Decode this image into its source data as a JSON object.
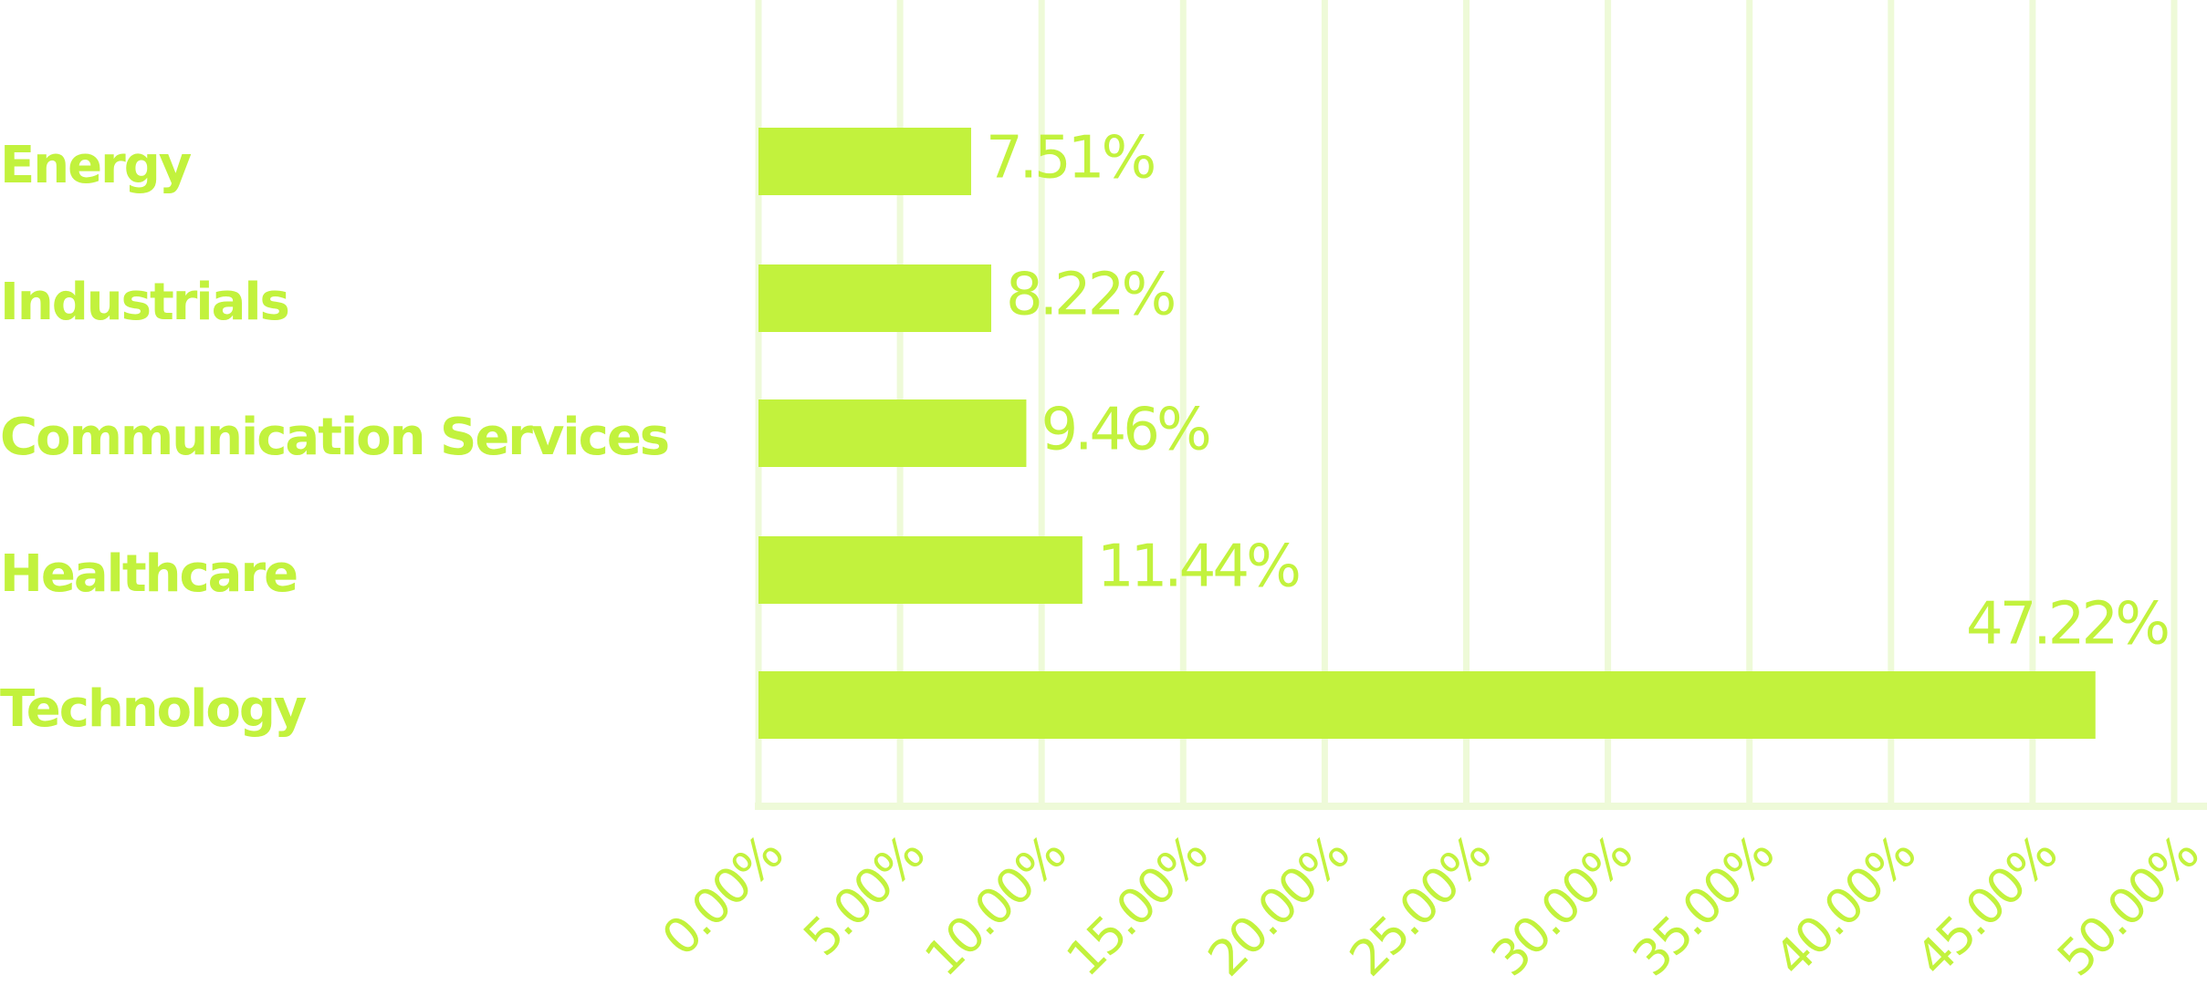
{
  "chart_data": {
    "type": "bar",
    "orientation": "horizontal",
    "categories": [
      "Energy",
      "Industrials",
      "Communication Services",
      "Healthcare",
      "Technology"
    ],
    "values": [
      7.51,
      8.22,
      9.46,
      11.44,
      47.22
    ],
    "value_labels": [
      "7.51%",
      "8.22%",
      "9.46%",
      "11.44%",
      "47.22%"
    ],
    "color": "#c2f23d",
    "xlim": [
      0,
      50
    ],
    "xticks": [
      {
        "value": 0,
        "label": "0.00%"
      },
      {
        "value": 5,
        "label": "5.00%"
      },
      {
        "value": 10,
        "label": "10.00%"
      },
      {
        "value": 15,
        "label": "15.00%"
      },
      {
        "value": 20,
        "label": "20.00%"
      },
      {
        "value": 25,
        "label": "25.00%"
      },
      {
        "value": 30,
        "label": "30.00%"
      },
      {
        "value": 35,
        "label": "35.00%"
      },
      {
        "value": 40,
        "label": "40.00%"
      },
      {
        "value": 45,
        "label": "45.00%"
      },
      {
        "value": 50,
        "label": "50.00%"
      }
    ],
    "grid": true
  }
}
